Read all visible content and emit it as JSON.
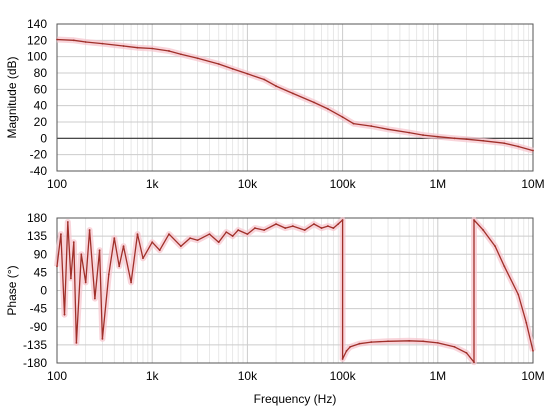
{
  "chart_data": [
    {
      "type": "line",
      "xscale": "log",
      "xlim": [
        100,
        10000000
      ],
      "ylim": [
        -40,
        140
      ],
      "ylabel": "Magnitude (dB)",
      "xlabel": "",
      "grid": true,
      "zero_line": true,
      "colors": {
        "line": "#a0302a",
        "band": "#f6c3cc",
        "grid": "#cccccc",
        "zero": "#333333"
      },
      "yticks": [
        "-40",
        "-20",
        "0",
        "20",
        "40",
        "60",
        "80",
        "100",
        "120",
        "140"
      ],
      "xticks": [
        "100",
        "1k",
        "10k",
        "100k",
        "1M",
        "10M"
      ],
      "series": [
        {
          "x": [
            100,
            150,
            200,
            300,
            500,
            700,
            1000,
            1500,
            2000,
            3000,
            5000,
            7000,
            10000,
            15000,
            20000,
            30000,
            50000,
            70000,
            100000,
            130000,
            200000,
            300000,
            500000,
            700000,
            1000000,
            1500000,
            2000000,
            3000000,
            5000000,
            7000000,
            10000000
          ],
          "y": [
            121,
            120,
            118,
            116,
            113,
            111,
            110,
            107,
            103,
            98,
            91,
            85,
            79,
            72,
            64,
            55,
            44,
            36,
            26,
            18,
            15,
            11,
            7,
            4,
            2,
            0,
            -1,
            -3,
            -6,
            -10,
            -15
          ]
        }
      ]
    },
    {
      "type": "line",
      "xscale": "log",
      "xlim": [
        100,
        10000000
      ],
      "ylim": [
        -180,
        180
      ],
      "ylabel": "Phase (°)",
      "xlabel": "Frequency (Hz)",
      "grid": true,
      "colors": {
        "line": "#a0302a",
        "band": "#f6c3cc",
        "grid": "#cccccc"
      },
      "yticks": [
        "-180",
        "-135",
        "-90",
        "-45",
        "0",
        "45",
        "90",
        "135",
        "180"
      ],
      "xticks": [
        "100",
        "1k",
        "10k",
        "100k",
        "1M",
        "10M"
      ],
      "series": [
        {
          "x": [
            100,
            110,
            120,
            130,
            140,
            150,
            160,
            180,
            200,
            220,
            250,
            280,
            300,
            350,
            400,
            450,
            500,
            600,
            700,
            800,
            1000,
            1200,
            1500,
            2000,
            2500,
            3000,
            4000,
            5000,
            6000,
            7000,
            8000,
            10000,
            12000,
            15000,
            20000,
            25000,
            30000,
            40000,
            50000,
            60000,
            70000,
            80000,
            90000,
            100000,
            100000,
            110000,
            120000,
            150000,
            200000,
            300000,
            500000,
            700000,
            1000000,
            1500000,
            2000000,
            2400000,
            2400000,
            3000000,
            4000000,
            5000000,
            7000000,
            8500000,
            10000000
          ],
          "y": [
            60,
            140,
            -60,
            170,
            30,
            120,
            -130,
            90,
            20,
            150,
            -20,
            100,
            -120,
            40,
            130,
            60,
            110,
            20,
            140,
            80,
            120,
            100,
            140,
            110,
            130,
            125,
            140,
            120,
            145,
            135,
            150,
            140,
            155,
            150,
            165,
            155,
            160,
            150,
            165,
            155,
            160,
            155,
            165,
            175,
            -170,
            -150,
            -140,
            -132,
            -128,
            -126,
            -125,
            -126,
            -130,
            -140,
            -155,
            -178,
            175,
            150,
            110,
            60,
            -10,
            -80,
            -150
          ]
        }
      ]
    }
  ]
}
